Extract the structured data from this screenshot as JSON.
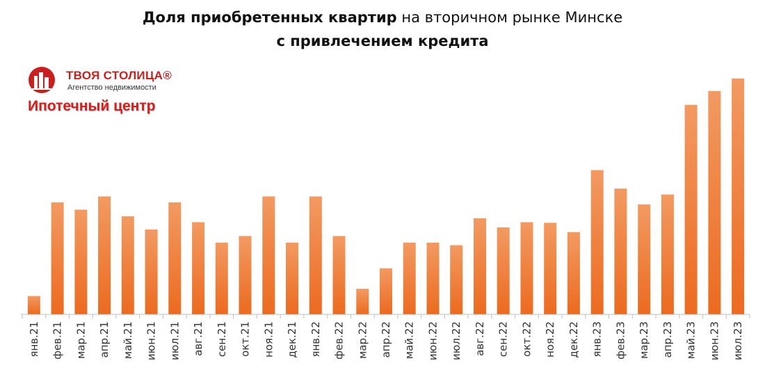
{
  "title": {
    "bold_part": "Доля приобретенных квартир",
    "normal_part": "на вторичном рынке Минске",
    "line2": "с привлечением кредита"
  },
  "logo": {
    "brand": "ТВОЯ СТОЛИЦА®",
    "subtitle": "Агентство недвижимости",
    "center": "Ипотечный центр",
    "icon": "building-logo-icon",
    "color": "#c8201f"
  },
  "colors": {
    "bar_top": "#f29a62",
    "bar_bottom": "#ec6a1f",
    "axis": "#bfbfbf"
  },
  "chart_data": {
    "type": "bar",
    "title": "Доля приобретенных квартир на вторичном рынке Минске с привлечением кредита",
    "xlabel": "",
    "ylabel": "",
    "grid": false,
    "y_axis_labels": false,
    "categories": [
      "янв.21",
      "фев.21",
      "мар.21",
      "апр.21",
      "май.21",
      "июн.21",
      "июл.21",
      "авг.21",
      "сен.21",
      "окт.21",
      "ноя.21",
      "дек.21",
      "янв.22",
      "фев.22",
      "мар.22",
      "апр.22",
      "май.22",
      "июн.22",
      "июл.22",
      "авг.22",
      "сен.22",
      "окт.22",
      "ноя.22",
      "дек.22",
      "янв.23",
      "фев.23",
      "мар.23",
      "апр.23",
      "май.23",
      "июн.23",
      "июл.23"
    ],
    "values": [
      28,
      170,
      159,
      179,
      149,
      129,
      170,
      140,
      109,
      119,
      179,
      109,
      179,
      119,
      39,
      70,
      109,
      109,
      105,
      146,
      132,
      140,
      139,
      125,
      219,
      191,
      167,
      182,
      318,
      339,
      358
    ],
    "ylim": [
      0,
      380
    ]
  }
}
